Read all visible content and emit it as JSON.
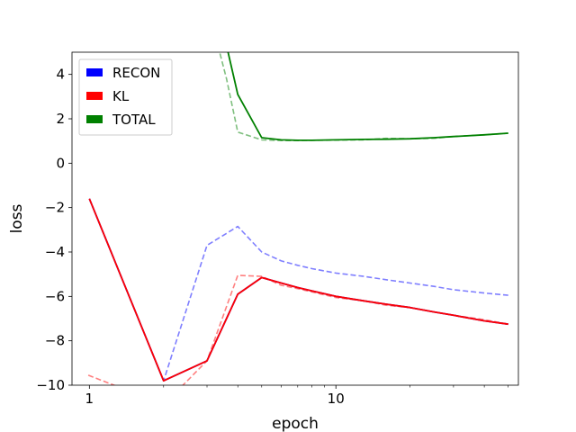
{
  "chart_data": {
    "type": "line",
    "title": "",
    "xlabel": "epoch",
    "ylabel": "loss",
    "xscale": "log",
    "xlim": [
      0.85,
      55
    ],
    "ylim": [
      -10,
      5
    ],
    "xticks": [
      {
        "value": 1,
        "label": "1"
      },
      {
        "value": 10,
        "label": "10"
      }
    ],
    "yticks": [
      {
        "value": 4,
        "label": "4"
      },
      {
        "value": 2,
        "label": "2"
      },
      {
        "value": 0,
        "label": "0"
      },
      {
        "value": -2,
        "label": "−2"
      },
      {
        "value": -4,
        "label": "−4"
      },
      {
        "value": -6,
        "label": "−6"
      },
      {
        "value": -8,
        "label": "−8"
      },
      {
        "value": -10,
        "label": "−10"
      }
    ],
    "grid": false,
    "legend": {
      "position": "upper-left",
      "entries": [
        {
          "name": "RECON",
          "color": "#0000ff"
        },
        {
          "name": "KL",
          "color": "#ff0000"
        },
        {
          "name": "TOTAL",
          "color": "#008000"
        }
      ]
    },
    "series": [
      {
        "name": "RECON",
        "color": "#0000ff",
        "style": "solid",
        "x": [
          1,
          2,
          3,
          4,
          5,
          6,
          7,
          8,
          10,
          13,
          16,
          20,
          25,
          30,
          40,
          50
        ],
        "y": [
          -1.6,
          -9.8,
          -8.9,
          -5.9,
          -5.15,
          -5.4,
          -5.6,
          -5.75,
          -6.0,
          -6.2,
          -6.35,
          -6.5,
          -6.7,
          -6.85,
          -7.1,
          -7.25
        ]
      },
      {
        "name": "KL",
        "color": "#ff0000",
        "style": "solid",
        "x": [
          1,
          2,
          3,
          4,
          5,
          6,
          7,
          8,
          10,
          13,
          16,
          20,
          25,
          30,
          40,
          50
        ],
        "y": [
          -1.6,
          -9.8,
          -8.9,
          -5.9,
          -5.15,
          -5.4,
          -5.6,
          -5.75,
          -6.0,
          -6.2,
          -6.35,
          -6.5,
          -6.7,
          -6.85,
          -7.1,
          -7.25
        ]
      },
      {
        "name": "TOTAL",
        "color": "#008000",
        "style": "solid",
        "x": [
          3.3,
          3.6,
          4,
          5,
          6,
          7,
          8,
          10,
          13,
          16,
          20,
          25,
          30,
          40,
          50
        ],
        "y": [
          12,
          5.3,
          3.1,
          1.15,
          1.05,
          1.03,
          1.03,
          1.05,
          1.07,
          1.08,
          1.1,
          1.15,
          1.2,
          1.28,
          1.35
        ]
      },
      {
        "name": "RECON-val",
        "color": "#0000ff",
        "style": "dashed",
        "opacity": 0.5,
        "x": [
          1,
          2,
          3,
          4,
          5,
          6,
          7,
          8,
          10,
          13,
          16,
          20,
          25,
          30,
          40,
          50
        ],
        "y": [
          -1.6,
          -9.8,
          -3.7,
          -2.85,
          -4.0,
          -4.4,
          -4.6,
          -4.75,
          -4.95,
          -5.1,
          -5.25,
          -5.4,
          -5.55,
          -5.7,
          -5.85,
          -5.95
        ]
      },
      {
        "name": "KL-val",
        "color": "#ff0000",
        "style": "dashed",
        "opacity": 0.5,
        "x": [
          0.99,
          1.4,
          2.3,
          3,
          4,
          5,
          6,
          7,
          8,
          10,
          13,
          16,
          20,
          25,
          30,
          40,
          50
        ],
        "y": [
          -9.55,
          -10.2,
          -10.2,
          -8.9,
          -5.05,
          -5.1,
          -5.5,
          -5.65,
          -5.8,
          -6.05,
          -6.2,
          -6.4,
          -6.5,
          -6.7,
          -6.85,
          -7.05,
          -7.25
        ]
      },
      {
        "name": "TOTAL-val",
        "color": "#008000",
        "style": "dashed",
        "opacity": 0.5,
        "x": [
          3.2,
          3.6,
          4,
          5,
          6,
          7,
          8,
          10,
          13,
          16,
          20,
          25,
          30,
          40,
          50
        ],
        "y": [
          6,
          3.8,
          1.4,
          1.05,
          1.02,
          1.02,
          1.03,
          1.04,
          1.05,
          1.12,
          1.1,
          1.12,
          1.2,
          1.28,
          1.35
        ]
      }
    ]
  }
}
